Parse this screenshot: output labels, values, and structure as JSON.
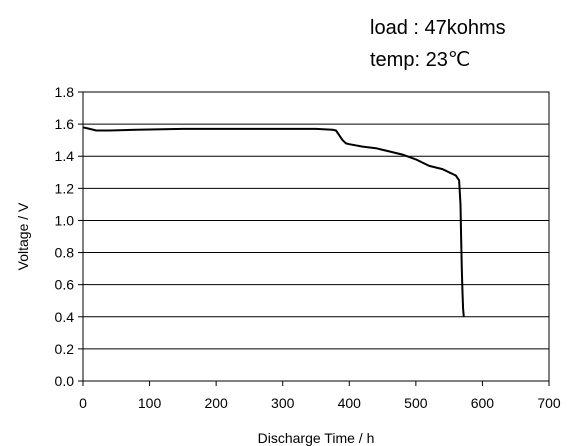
{
  "chart_data": {
    "type": "line",
    "title": "",
    "annotations": [
      "load : 47kohms",
      "temp: 23℃"
    ],
    "xlabel": "Discharge Time / h",
    "ylabel": "Voltage / V",
    "xlim": [
      0,
      700
    ],
    "ylim": [
      0.0,
      1.8
    ],
    "x_ticks": [
      "0",
      "100",
      "200",
      "300",
      "400",
      "500",
      "600",
      "700"
    ],
    "y_ticks": [
      "0.0",
      "0.2",
      "0.4",
      "0.6",
      "0.8",
      "1.0",
      "1.2",
      "1.4",
      "1.6",
      "1.8"
    ],
    "grid": "horizontal",
    "legend": "none",
    "series": [
      {
        "color": "#000000",
        "x": [
          0,
          10,
          20,
          40,
          80,
          150,
          250,
          350,
          375,
          380,
          385,
          390,
          395,
          400,
          420,
          440,
          460,
          480,
          500,
          520,
          540,
          550,
          560,
          565,
          567,
          568,
          569,
          570,
          571,
          572
        ],
        "y": [
          1.58,
          1.57,
          1.56,
          1.56,
          1.565,
          1.57,
          1.57,
          1.57,
          1.565,
          1.56,
          1.53,
          1.5,
          1.48,
          1.475,
          1.46,
          1.45,
          1.43,
          1.41,
          1.38,
          1.34,
          1.32,
          1.3,
          1.28,
          1.25,
          1.1,
          0.9,
          0.7,
          0.55,
          0.45,
          0.4
        ]
      }
    ]
  }
}
